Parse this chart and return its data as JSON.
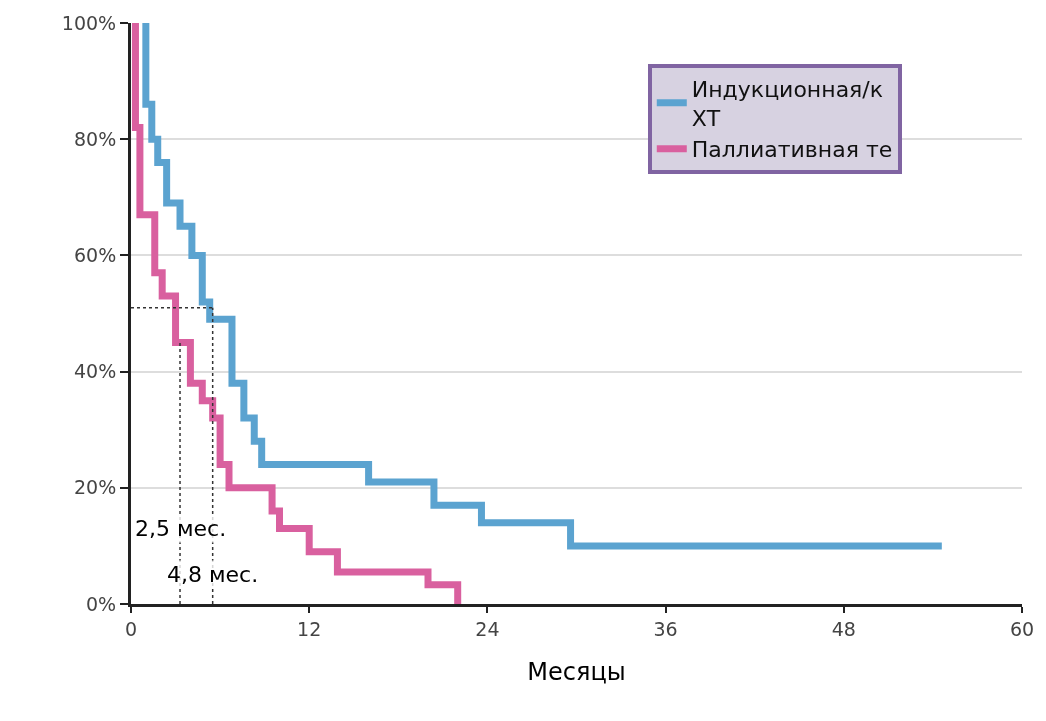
{
  "chart_data": {
    "type": "step",
    "xlabel": "Месяцы",
    "xlim": [
      0,
      60
    ],
    "xticks": [
      0,
      12,
      24,
      36,
      48,
      60
    ],
    "ylim": [
      0,
      100
    ],
    "yticks": [
      {
        "value": 0,
        "label": "0%"
      },
      {
        "value": 20,
        "label": "20%"
      },
      {
        "value": 40,
        "label": "40%"
      },
      {
        "value": 60,
        "label": "60%"
      },
      {
        "value": 80,
        "label": "80%"
      },
      {
        "value": 100,
        "label": "100%"
      }
    ],
    "grid": "y",
    "legend": "top right",
    "series": [
      {
        "name": "Индукционная/к\nХТ",
        "color": "#5ba3d0",
        "x": [
          1.0,
          1.0,
          1.4,
          1.8,
          2.4,
          3.3,
          4.1,
          4.8,
          5.3,
          6.8,
          7.6,
          8.3,
          8.8,
          16,
          20.4,
          23.6,
          29.6,
          54.6
        ],
        "values": [
          100,
          86,
          80,
          76,
          69,
          65,
          60,
          52,
          49,
          38,
          32,
          28,
          24,
          21,
          17,
          14,
          10,
          10
        ]
      },
      {
        "name": "Паллиативная те",
        "color": "#d9609f",
        "x": [
          0.3,
          0.3,
          0.6,
          1.6,
          2.1,
          3.0,
          4.0,
          4.8,
          5.5,
          6.0,
          6.6,
          9.5,
          10.0,
          12.0,
          13.9,
          20.0,
          22.0
        ],
        "values": [
          100,
          82,
          67,
          57,
          53,
          45,
          38,
          35,
          32,
          24,
          20,
          16,
          13,
          9,
          5.5,
          3.3,
          0
        ]
      },
      {
        "type": "line",
        "line_style": "dotted",
        "color": "#333333",
        "x": [
          0,
          5.5
        ],
        "values": [
          51,
          51
        ]
      },
      {
        "type": "line",
        "line_style": "dotted",
        "color": "#333333",
        "x": [
          3.3,
          3.3
        ],
        "values": [
          0,
          45
        ]
      },
      {
        "type": "line",
        "line_style": "dotted",
        "color": "#333333",
        "x": [
          5.5,
          5.5
        ],
        "values": [
          0,
          51
        ]
      }
    ],
    "annotations": [
      {
        "text": "2,5 мес.",
        "x": 3.3,
        "y": 13
      },
      {
        "text": "4,8 мес.",
        "x": 5.5,
        "y": 5
      }
    ]
  }
}
